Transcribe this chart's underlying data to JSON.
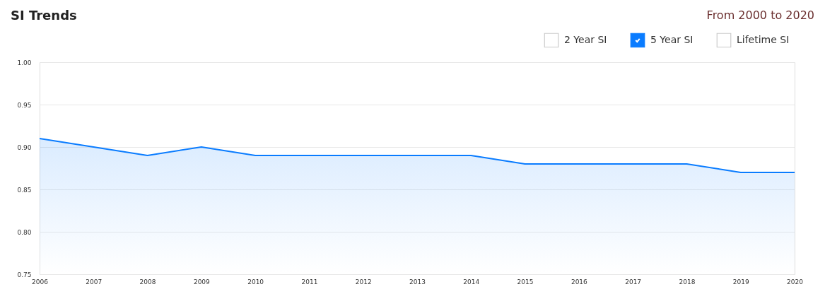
{
  "chart_data": {
    "type": "area",
    "title": "SI Trends",
    "subtitle": "From 2000 to 2020",
    "categories": [
      "2006",
      "2007",
      "2008",
      "2009",
      "2010",
      "2011",
      "2012",
      "2013",
      "2014",
      "2015",
      "2016",
      "2017",
      "2018",
      "2019",
      "2020"
    ],
    "series": [
      {
        "name": "2 Year SI",
        "values": [
          null,
          null,
          null,
          null,
          null,
          null,
          null,
          null,
          null,
          null,
          null,
          null,
          null,
          null,
          null
        ]
      },
      {
        "name": "5 Year SI",
        "color": "#0a7cff",
        "values": [
          0.91,
          0.9,
          0.89,
          0.9,
          0.89,
          0.89,
          0.89,
          0.89,
          0.89,
          0.88,
          0.88,
          0.88,
          0.88,
          0.87,
          0.87
        ]
      },
      {
        "name": "Lifetime SI",
        "values": [
          null,
          null,
          null,
          null,
          null,
          null,
          null,
          null,
          null,
          null,
          null,
          null,
          null,
          null,
          null
        ]
      }
    ],
    "ylim": [
      0.75,
      1.0
    ],
    "yticks": [
      {
        "value": 0.75,
        "label": "0.75"
      },
      {
        "value": 0.8,
        "label": "0.80"
      },
      {
        "value": 0.85,
        "label": "0.85"
      },
      {
        "value": 0.9,
        "label": "0.90"
      },
      {
        "value": 0.95,
        "label": "0.95"
      },
      {
        "value": 1.0,
        "label": "1.00"
      }
    ],
    "grid": "y",
    "legend": "top right"
  }
}
